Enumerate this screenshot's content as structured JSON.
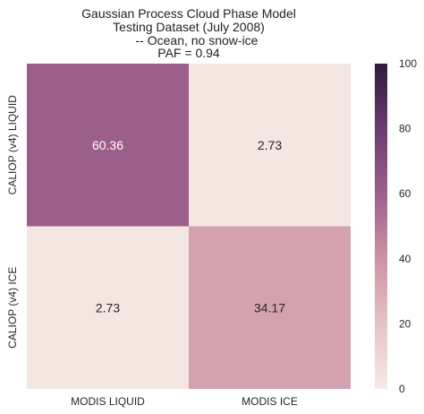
{
  "chart_data": {
    "type": "heatmap",
    "title_lines": [
      "Gaussian Process Cloud Phase Model",
      "Testing Dataset (July 2008)",
      "-- Ocean, no snow-ice",
      "PAF = 0.94"
    ],
    "x_categories": [
      "MODIS LIQUID",
      "MODIS ICE"
    ],
    "y_categories": [
      "CALIOP (v4) LIQUID",
      "CALIOP (v4) ICE"
    ],
    "values": [
      [
        60.36,
        2.73
      ],
      [
        2.73,
        34.17
      ]
    ],
    "value_labels": [
      [
        "60.36",
        "2.73"
      ],
      [
        "2.73",
        "34.17"
      ]
    ],
    "colorbar": {
      "range": [
        0,
        100
      ],
      "ticks": [
        "0",
        "20",
        "40",
        "60",
        "80",
        "100"
      ],
      "colors": [
        "#f6ebe5",
        "#e6c3c4",
        "#cd93a5",
        "#9d5f8b",
        "#6a3c6f",
        "#2f1a3f"
      ]
    },
    "grid": false,
    "light_text_color": "#ffffff",
    "dark_text_color": "#262626"
  }
}
